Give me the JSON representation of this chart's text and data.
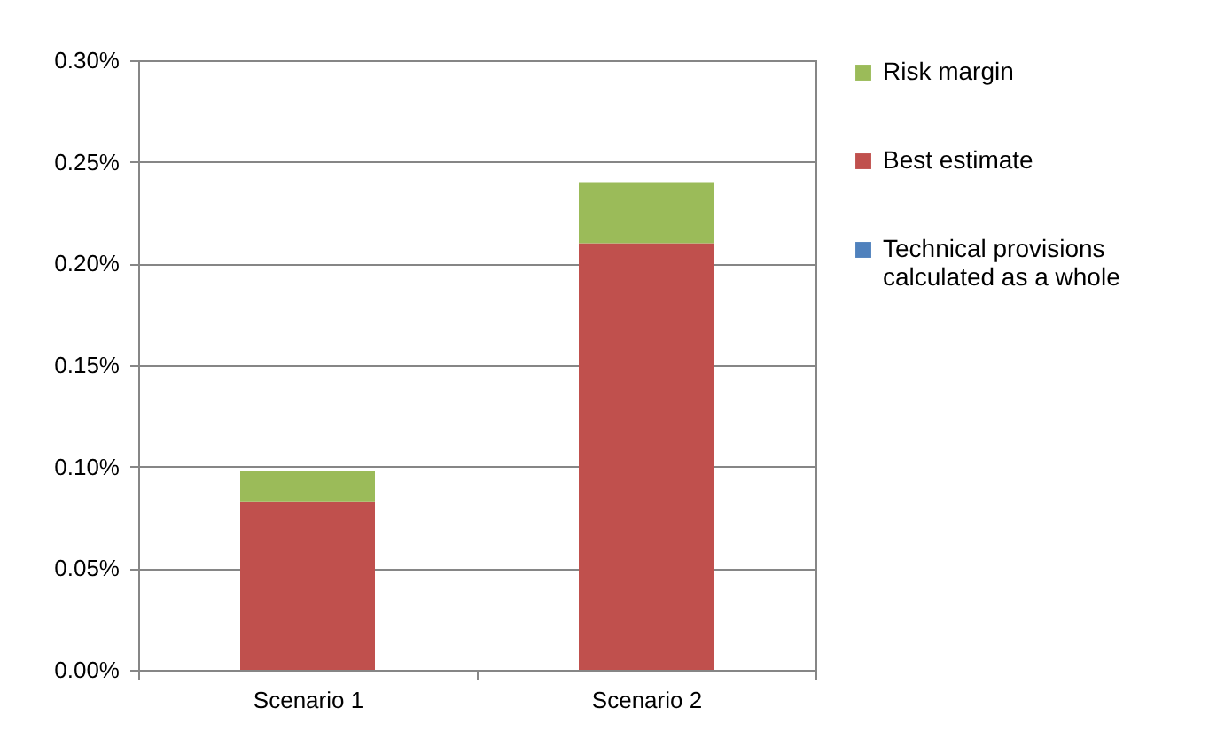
{
  "chart_data": {
    "type": "bar",
    "stacked": true,
    "categories": [
      "Scenario 1",
      "Scenario 2"
    ],
    "series": [
      {
        "name": "Technical provisions calculated as a whole",
        "color": "#4f81bd",
        "values": [
          0,
          0
        ]
      },
      {
        "name": "Best estimate",
        "color": "#c0504d",
        "values": [
          0.083,
          0.21
        ]
      },
      {
        "name": "Risk margin",
        "color": "#9bbb59",
        "values": [
          0.015,
          0.03
        ]
      }
    ],
    "ylim": [
      0,
      0.3
    ],
    "yticks": [
      {
        "value": 0,
        "label": "0.00%"
      },
      {
        "value": 0.05,
        "label": "0.05%"
      },
      {
        "value": 0.1,
        "label": "0.10%"
      },
      {
        "value": 0.15,
        "label": "0.15%"
      },
      {
        "value": 0.2,
        "label": "0.20%"
      },
      {
        "value": 0.25,
        "label": "0.25%"
      },
      {
        "value": 0.3,
        "label": "0.30%"
      }
    ],
    "grid": "y",
    "legend": "right"
  }
}
